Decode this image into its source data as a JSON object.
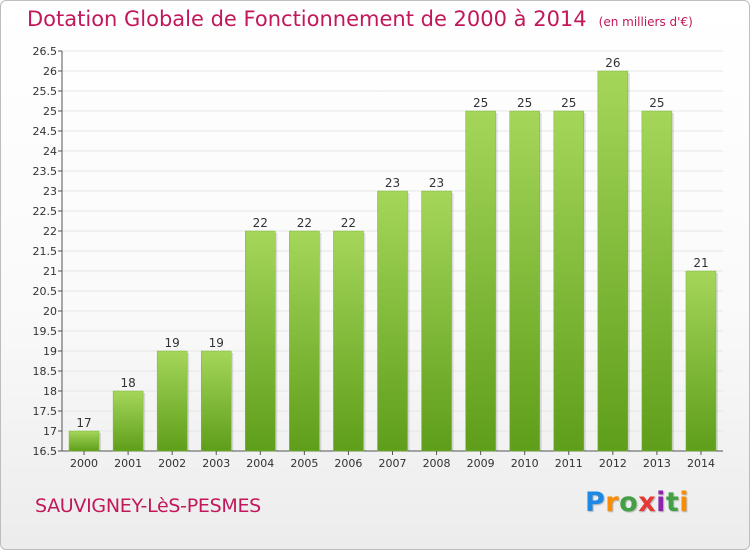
{
  "title": "Dotation Globale de Fonctionnement de 2000 à 2014",
  "subtitle": "(en milliers d'€)",
  "commune": "SAUVIGNEY-LèS-PESMES",
  "brand": "Proxiti",
  "colors": {
    "title": "#c2185b",
    "bar_light": "#a5d65a",
    "bar_dark": "#5e9e1a",
    "grid": "#e6e6e6",
    "axis": "#555555"
  },
  "chart_data": {
    "type": "bar",
    "title": "Dotation Globale de Fonctionnement de 2000 à 2014",
    "subtitle": "(en milliers d'€)",
    "xlabel": "",
    "ylabel": "",
    "categories": [
      "2000",
      "2001",
      "2002",
      "2003",
      "2004",
      "2005",
      "2006",
      "2007",
      "2008",
      "2009",
      "2010",
      "2011",
      "2012",
      "2013",
      "2014"
    ],
    "values": [
      17,
      18,
      19,
      19,
      22,
      22,
      22,
      23,
      23,
      25,
      25,
      25,
      26,
      25,
      21
    ],
    "data_labels": [
      "17",
      "18",
      "19",
      "19",
      "22",
      "22",
      "22",
      "23",
      "23",
      "25",
      "25",
      "25",
      "26",
      "25",
      "21"
    ],
    "ylim": [
      16.5,
      26.5
    ],
    "yticks": [
      "16.5",
      "17",
      "17.5",
      "18",
      "18.5",
      "19",
      "19.5",
      "20",
      "20.5",
      "21",
      "21.5",
      "22",
      "22.5",
      "23",
      "23.5",
      "24",
      "24.5",
      "25",
      "25.5",
      "26",
      "26.5"
    ],
    "grid": true,
    "legend": "none"
  }
}
